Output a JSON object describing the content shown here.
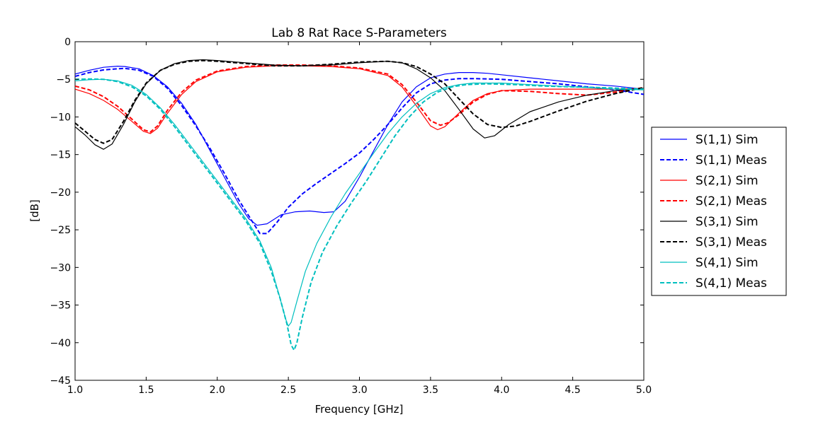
{
  "chart_data": {
    "type": "line",
    "title": "Lab 8 Rat Race S-Parameters",
    "xlabel": "Frequency [GHz]",
    "ylabel": "[dB]",
    "xlim": [
      1.0,
      5.0
    ],
    "ylim": [
      -45,
      0
    ],
    "xticks": [
      1.0,
      1.5,
      2.0,
      2.5,
      3.0,
      3.5,
      4.0,
      4.5,
      5.0
    ],
    "xtick_labels": [
      "1.0",
      "1.5",
      "2.0",
      "2.5",
      "3.0",
      "3.5",
      "4.0",
      "4.5",
      "5.0"
    ],
    "yticks": [
      0,
      -5,
      -10,
      -15,
      -20,
      -25,
      -30,
      -35,
      -40,
      -45
    ],
    "ytick_labels": [
      "0",
      "−5",
      "−10",
      "−15",
      "−20",
      "−25",
      "−30",
      "−35",
      "−40",
      "−45"
    ],
    "grid": false,
    "legend_position": "outside-right",
    "series": [
      {
        "name": "S(1,1) Sim",
        "color": "#0000ff",
        "dashed": false,
        "points": [
          [
            1.0,
            -4.3
          ],
          [
            1.1,
            -3.8
          ],
          [
            1.2,
            -3.4
          ],
          [
            1.3,
            -3.25
          ],
          [
            1.35,
            -3.3
          ],
          [
            1.45,
            -3.6
          ],
          [
            1.55,
            -4.5
          ],
          [
            1.65,
            -6.0
          ],
          [
            1.75,
            -8.2
          ],
          [
            1.85,
            -11.0
          ],
          [
            1.95,
            -14.5
          ],
          [
            2.05,
            -18.0
          ],
          [
            2.15,
            -21.5
          ],
          [
            2.22,
            -23.5
          ],
          [
            2.28,
            -24.4
          ],
          [
            2.35,
            -24.2
          ],
          [
            2.45,
            -23.0
          ],
          [
            2.55,
            -22.6
          ],
          [
            2.65,
            -22.5
          ],
          [
            2.75,
            -22.7
          ],
          [
            2.82,
            -22.6
          ],
          [
            2.9,
            -21.2
          ],
          [
            3.0,
            -18.0
          ],
          [
            3.1,
            -14.5
          ],
          [
            3.2,
            -11.0
          ],
          [
            3.3,
            -8.0
          ],
          [
            3.4,
            -6.0
          ],
          [
            3.5,
            -4.8
          ],
          [
            3.6,
            -4.3
          ],
          [
            3.7,
            -4.1
          ],
          [
            3.8,
            -4.1
          ],
          [
            3.9,
            -4.2
          ],
          [
            4.0,
            -4.4
          ],
          [
            4.2,
            -4.8
          ],
          [
            4.4,
            -5.2
          ],
          [
            4.6,
            -5.6
          ],
          [
            4.8,
            -5.9
          ],
          [
            5.0,
            -6.3
          ]
        ]
      },
      {
        "name": "S(1,1) Meas",
        "color": "#0000ff",
        "dashed": true,
        "points": [
          [
            1.0,
            -4.6
          ],
          [
            1.1,
            -4.1
          ],
          [
            1.2,
            -3.75
          ],
          [
            1.3,
            -3.6
          ],
          [
            1.35,
            -3.55
          ],
          [
            1.45,
            -3.8
          ],
          [
            1.55,
            -4.6
          ],
          [
            1.65,
            -6.2
          ],
          [
            1.75,
            -8.5
          ],
          [
            1.85,
            -11.2
          ],
          [
            1.95,
            -14.2
          ],
          [
            2.05,
            -17.5
          ],
          [
            2.15,
            -21.0
          ],
          [
            2.25,
            -24.0
          ],
          [
            2.3,
            -25.5
          ],
          [
            2.35,
            -25.5
          ],
          [
            2.42,
            -24.0
          ],
          [
            2.5,
            -22.0
          ],
          [
            2.6,
            -20.2
          ],
          [
            2.7,
            -18.8
          ],
          [
            2.8,
            -17.5
          ],
          [
            2.9,
            -16.2
          ],
          [
            3.0,
            -14.8
          ],
          [
            3.1,
            -13.0
          ],
          [
            3.2,
            -11.0
          ],
          [
            3.3,
            -8.8
          ],
          [
            3.4,
            -6.8
          ],
          [
            3.5,
            -5.6
          ],
          [
            3.6,
            -5.1
          ],
          [
            3.7,
            -4.9
          ],
          [
            3.8,
            -4.9
          ],
          [
            4.0,
            -5.0
          ],
          [
            4.2,
            -5.3
          ],
          [
            4.4,
            -5.6
          ],
          [
            4.6,
            -6.0
          ],
          [
            4.8,
            -6.4
          ],
          [
            5.0,
            -7.0
          ]
        ]
      },
      {
        "name": "S(2,1) Sim",
        "color": "#ff0000",
        "dashed": false,
        "points": [
          [
            1.0,
            -6.3
          ],
          [
            1.1,
            -6.9
          ],
          [
            1.2,
            -7.8
          ],
          [
            1.3,
            -9.0
          ],
          [
            1.4,
            -10.6
          ],
          [
            1.48,
            -11.9
          ],
          [
            1.53,
            -12.2
          ],
          [
            1.58,
            -11.5
          ],
          [
            1.65,
            -9.5
          ],
          [
            1.75,
            -7.0
          ],
          [
            1.85,
            -5.3
          ],
          [
            2.0,
            -4.0
          ],
          [
            2.2,
            -3.4
          ],
          [
            2.4,
            -3.2
          ],
          [
            2.6,
            -3.2
          ],
          [
            2.8,
            -3.3
          ],
          [
            3.0,
            -3.6
          ],
          [
            3.2,
            -4.5
          ],
          [
            3.3,
            -6.0
          ],
          [
            3.4,
            -8.5
          ],
          [
            3.5,
            -11.2
          ],
          [
            3.55,
            -11.7
          ],
          [
            3.6,
            -11.3
          ],
          [
            3.7,
            -9.5
          ],
          [
            3.8,
            -7.8
          ],
          [
            3.9,
            -6.9
          ],
          [
            4.0,
            -6.5
          ],
          [
            4.2,
            -6.3
          ],
          [
            4.4,
            -6.3
          ],
          [
            4.6,
            -6.3
          ],
          [
            4.8,
            -6.3
          ],
          [
            5.0,
            -6.2
          ]
        ]
      },
      {
        "name": "S(2,1) Meas",
        "color": "#ff0000",
        "dashed": true,
        "points": [
          [
            1.0,
            -5.9
          ],
          [
            1.1,
            -6.4
          ],
          [
            1.2,
            -7.3
          ],
          [
            1.3,
            -8.6
          ],
          [
            1.4,
            -10.3
          ],
          [
            1.48,
            -11.7
          ],
          [
            1.53,
            -12.0
          ],
          [
            1.58,
            -11.2
          ],
          [
            1.65,
            -9.1
          ],
          [
            1.75,
            -6.7
          ],
          [
            1.85,
            -5.1
          ],
          [
            2.0,
            -3.9
          ],
          [
            2.2,
            -3.3
          ],
          [
            2.4,
            -3.1
          ],
          [
            2.6,
            -3.1
          ],
          [
            2.8,
            -3.2
          ],
          [
            3.0,
            -3.5
          ],
          [
            3.2,
            -4.3
          ],
          [
            3.3,
            -5.7
          ],
          [
            3.4,
            -8.0
          ],
          [
            3.5,
            -10.5
          ],
          [
            3.57,
            -11.1
          ],
          [
            3.62,
            -10.8
          ],
          [
            3.7,
            -9.7
          ],
          [
            3.8,
            -8.0
          ],
          [
            3.9,
            -7.0
          ],
          [
            4.0,
            -6.5
          ],
          [
            4.2,
            -6.6
          ],
          [
            4.4,
            -6.9
          ],
          [
            4.6,
            -7.1
          ],
          [
            4.8,
            -6.7
          ],
          [
            5.0,
            -6.1
          ]
        ]
      },
      {
        "name": "S(3,1) Sim",
        "color": "#000000",
        "dashed": false,
        "points": [
          [
            1.0,
            -11.3
          ],
          [
            1.07,
            -12.4
          ],
          [
            1.14,
            -13.7
          ],
          [
            1.2,
            -14.3
          ],
          [
            1.26,
            -13.6
          ],
          [
            1.34,
            -11.0
          ],
          [
            1.42,
            -8.0
          ],
          [
            1.5,
            -5.6
          ],
          [
            1.6,
            -3.8
          ],
          [
            1.7,
            -2.9
          ],
          [
            1.8,
            -2.5
          ],
          [
            1.9,
            -2.4
          ],
          [
            2.0,
            -2.5
          ],
          [
            2.2,
            -2.8
          ],
          [
            2.4,
            -3.1
          ],
          [
            2.6,
            -3.2
          ],
          [
            2.8,
            -3.1
          ],
          [
            3.0,
            -2.8
          ],
          [
            3.2,
            -2.6
          ],
          [
            3.3,
            -2.8
          ],
          [
            3.4,
            -3.6
          ],
          [
            3.5,
            -4.8
          ],
          [
            3.6,
            -6.5
          ],
          [
            3.7,
            -9.0
          ],
          [
            3.8,
            -11.6
          ],
          [
            3.88,
            -12.8
          ],
          [
            3.95,
            -12.5
          ],
          [
            4.05,
            -11.0
          ],
          [
            4.2,
            -9.3
          ],
          [
            4.4,
            -8.0
          ],
          [
            4.6,
            -7.1
          ],
          [
            4.8,
            -6.5
          ],
          [
            5.0,
            -6.2
          ]
        ]
      },
      {
        "name": "S(3,1) Meas",
        "color": "#000000",
        "dashed": true,
        "points": [
          [
            1.0,
            -10.8
          ],
          [
            1.07,
            -11.9
          ],
          [
            1.14,
            -13.0
          ],
          [
            1.2,
            -13.5
          ],
          [
            1.26,
            -13.0
          ],
          [
            1.34,
            -10.6
          ],
          [
            1.42,
            -7.8
          ],
          [
            1.5,
            -5.5
          ],
          [
            1.6,
            -3.8
          ],
          [
            1.7,
            -3.0
          ],
          [
            1.8,
            -2.6
          ],
          [
            1.9,
            -2.5
          ],
          [
            2.0,
            -2.6
          ],
          [
            2.2,
            -2.9
          ],
          [
            2.4,
            -3.2
          ],
          [
            2.6,
            -3.2
          ],
          [
            2.8,
            -3.0
          ],
          [
            3.0,
            -2.7
          ],
          [
            3.2,
            -2.6
          ],
          [
            3.3,
            -2.8
          ],
          [
            3.4,
            -3.3
          ],
          [
            3.5,
            -4.3
          ],
          [
            3.6,
            -5.6
          ],
          [
            3.7,
            -7.6
          ],
          [
            3.8,
            -9.6
          ],
          [
            3.9,
            -11.0
          ],
          [
            4.0,
            -11.4
          ],
          [
            4.1,
            -11.2
          ],
          [
            4.2,
            -10.6
          ],
          [
            4.4,
            -9.2
          ],
          [
            4.6,
            -7.9
          ],
          [
            4.8,
            -6.9
          ],
          [
            5.0,
            -6.1
          ]
        ]
      },
      {
        "name": "S(4,1) Sim",
        "color": "#00bfbf",
        "dashed": false,
        "points": [
          [
            1.0,
            -5.2
          ],
          [
            1.1,
            -5.05
          ],
          [
            1.2,
            -5.0
          ],
          [
            1.3,
            -5.2
          ],
          [
            1.4,
            -5.8
          ],
          [
            1.5,
            -7.0
          ],
          [
            1.6,
            -8.8
          ],
          [
            1.7,
            -11.0
          ],
          [
            1.8,
            -13.5
          ],
          [
            1.9,
            -16.0
          ],
          [
            2.0,
            -18.5
          ],
          [
            2.1,
            -21.0
          ],
          [
            2.2,
            -23.5
          ],
          [
            2.3,
            -26.5
          ],
          [
            2.38,
            -30.0
          ],
          [
            2.44,
            -34.0
          ],
          [
            2.48,
            -36.8
          ],
          [
            2.5,
            -37.8
          ],
          [
            2.52,
            -37.3
          ],
          [
            2.56,
            -34.5
          ],
          [
            2.62,
            -30.5
          ],
          [
            2.7,
            -26.8
          ],
          [
            2.8,
            -23.3
          ],
          [
            2.9,
            -20.2
          ],
          [
            3.0,
            -17.5
          ],
          [
            3.1,
            -14.8
          ],
          [
            3.2,
            -12.2
          ],
          [
            3.3,
            -10.0
          ],
          [
            3.4,
            -8.2
          ],
          [
            3.5,
            -6.9
          ],
          [
            3.6,
            -6.1
          ],
          [
            3.7,
            -5.7
          ],
          [
            3.8,
            -5.5
          ],
          [
            4.0,
            -5.5
          ],
          [
            4.2,
            -5.7
          ],
          [
            4.4,
            -5.9
          ],
          [
            4.6,
            -6.1
          ],
          [
            4.8,
            -6.3
          ],
          [
            5.0,
            -6.4
          ]
        ]
      },
      {
        "name": "S(4,1) Meas",
        "color": "#00bfbf",
        "dashed": true,
        "points": [
          [
            1.0,
            -5.0
          ],
          [
            1.1,
            -4.95
          ],
          [
            1.2,
            -5.0
          ],
          [
            1.3,
            -5.3
          ],
          [
            1.4,
            -6.0
          ],
          [
            1.5,
            -7.2
          ],
          [
            1.6,
            -9.0
          ],
          [
            1.7,
            -11.3
          ],
          [
            1.8,
            -13.8
          ],
          [
            1.9,
            -16.3
          ],
          [
            2.0,
            -18.8
          ],
          [
            2.1,
            -21.3
          ],
          [
            2.2,
            -23.8
          ],
          [
            2.3,
            -26.8
          ],
          [
            2.38,
            -30.5
          ],
          [
            2.44,
            -34.0
          ],
          [
            2.49,
            -37.5
          ],
          [
            2.52,
            -40.3
          ],
          [
            2.54,
            -41.0
          ],
          [
            2.56,
            -40.0
          ],
          [
            2.6,
            -36.5
          ],
          [
            2.66,
            -32.0
          ],
          [
            2.74,
            -28.0
          ],
          [
            2.84,
            -24.5
          ],
          [
            2.94,
            -21.5
          ],
          [
            3.05,
            -18.5
          ],
          [
            3.15,
            -15.5
          ],
          [
            3.25,
            -12.5
          ],
          [
            3.35,
            -10.0
          ],
          [
            3.45,
            -8.0
          ],
          [
            3.55,
            -6.7
          ],
          [
            3.65,
            -6.0
          ],
          [
            3.75,
            -5.7
          ],
          [
            3.9,
            -5.6
          ],
          [
            4.1,
            -5.7
          ],
          [
            4.3,
            -5.9
          ],
          [
            4.5,
            -6.0
          ],
          [
            4.7,
            -6.1
          ],
          [
            4.85,
            -6.2
          ],
          [
            5.0,
            -6.3
          ]
        ]
      }
    ]
  }
}
